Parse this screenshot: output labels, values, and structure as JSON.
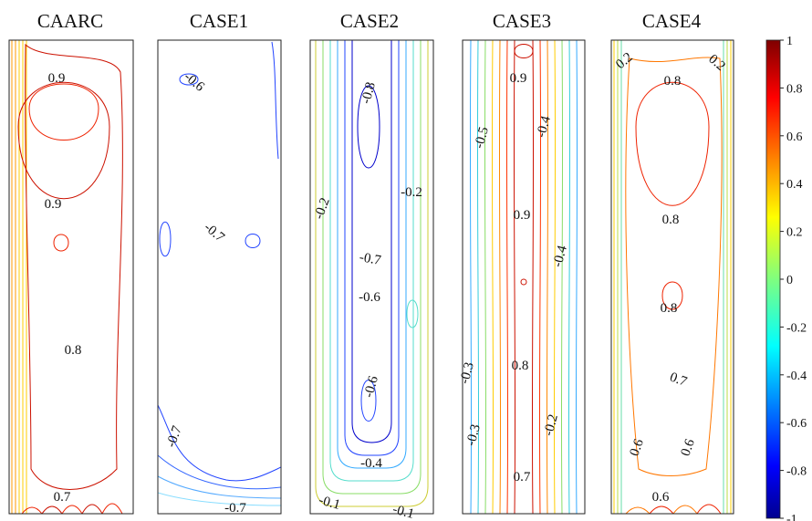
{
  "chart_data": {
    "type": "heatmap",
    "subtype": "contour",
    "panels": [
      {
        "title": "CAARC",
        "contour_labels": [
          "0.9",
          "0.9",
          "0.8",
          "0.7"
        ],
        "level_range": [
          0.0,
          0.9
        ],
        "colors": [
          "#ff9900",
          "#ffcc00",
          "#ffee55",
          "#ee2200",
          "#cc1100"
        ]
      },
      {
        "title": "CASE1",
        "contour_labels": [
          "-0.6",
          "-0.7",
          "-0.7",
          "-0.7"
        ],
        "level_range": [
          -1.0,
          -0.6
        ],
        "colors": [
          "#2244ff",
          "#0000aa",
          "#3366ff",
          "#55aaff",
          "#88ddff"
        ]
      },
      {
        "title": "CASE2",
        "contour_labels": [
          "-0.8",
          "-0.2",
          "-0.2",
          "-0.7",
          "-0.6",
          "-0.6",
          "-0.4",
          "-0.1",
          "-0.1"
        ],
        "level_range": [
          -0.8,
          0.2
        ],
        "colors": [
          "#0000cc",
          "#2244ff",
          "#33aaff",
          "#55ddcc",
          "#88dd66",
          "#cccc33"
        ]
      },
      {
        "title": "CASE3",
        "contour_labels": [
          "0.9",
          "-0.5",
          "-0.4",
          "0.9",
          "-0.4",
          "0.8",
          "-0.3",
          "-0.3",
          "-0.2",
          "0.7"
        ],
        "level_range": [
          -0.5,
          0.9
        ],
        "colors": [
          "#ff3300",
          "#ff8800",
          "#ffcc00",
          "#88dd66",
          "#33ccdd",
          "#33aaff",
          "#cc1100"
        ]
      },
      {
        "title": "CASE4",
        "contour_labels": [
          "0.2",
          "0.2",
          "0.8",
          "0.8",
          "0.8",
          "0.7",
          "0.6",
          "0.6",
          "0.6"
        ],
        "level_range": [
          0.2,
          0.8
        ],
        "colors": [
          "#ee2200",
          "#ff7700",
          "#ffcc00",
          "#bbdd44",
          "#66ddaa",
          "#44ccee"
        ]
      }
    ],
    "colorbar": {
      "ticks": [
        "1",
        "0.8",
        "0.6",
        "0.4",
        "0.2",
        "0",
        "-0.2",
        "-0.4",
        "-0.6",
        "-0.8",
        "-1"
      ],
      "range": [
        -1,
        1
      ],
      "colormap": "jet"
    }
  }
}
